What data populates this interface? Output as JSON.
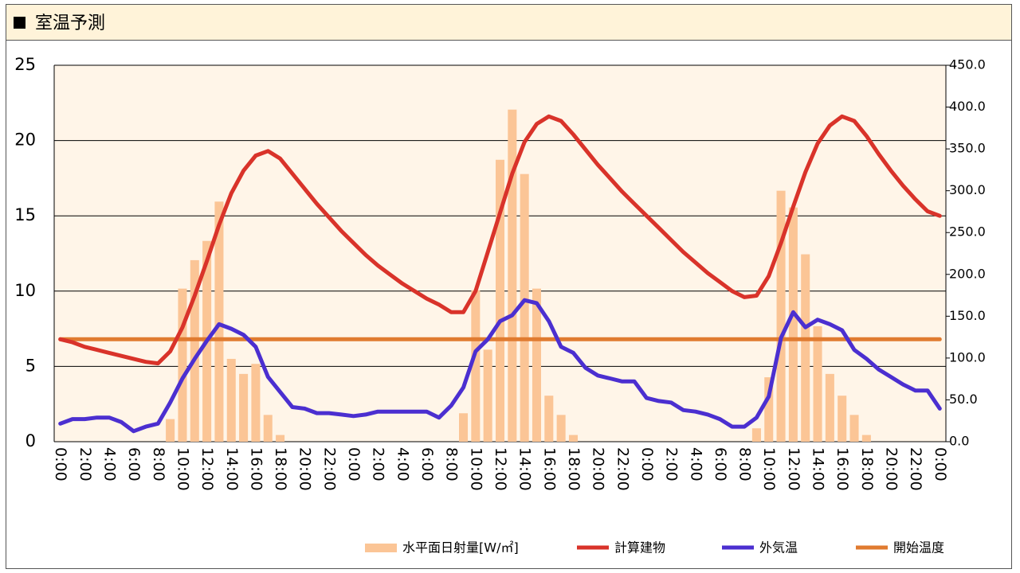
{
  "chart_data": {
    "type": "combo",
    "title": "室温予測",
    "categories": [
      "0:00",
      null,
      "2:00",
      null,
      "4:00",
      null,
      "6:00",
      null,
      "8:00",
      null,
      "10:00",
      null,
      "12:00",
      null,
      "14:00",
      null,
      "16:00",
      null,
      "18:00",
      null,
      "20:00",
      null,
      "22:00",
      null,
      "0:00",
      null,
      "2:00",
      null,
      "4:00",
      null,
      "6:00",
      null,
      "8:00",
      null,
      "10:00",
      null,
      "12:00",
      null,
      "14:00",
      null,
      "16:00",
      null,
      "18:00",
      null,
      "20:00",
      null,
      "22:00",
      null,
      "0:00",
      null,
      "2:00",
      null,
      "4:00",
      null,
      "6:00",
      null,
      "8:00",
      null,
      "10:00",
      null,
      "12:00",
      null,
      "14:00",
      null,
      "16:00",
      null,
      "18:00",
      null,
      "20:00",
      null,
      "22:00",
      null,
      "0:00"
    ],
    "ylim": [
      0,
      25
    ],
    "yticks": [
      0,
      5,
      10,
      15,
      20,
      25
    ],
    "y2lim": [
      0,
      450
    ],
    "y2ticks": [
      {
        "value": 0,
        "label": "0.0"
      },
      {
        "value": 50,
        "label": "50.0"
      },
      {
        "value": 100,
        "label": "100.0"
      },
      {
        "value": 150,
        "label": "150.0"
      },
      {
        "value": 200,
        "label": "200.0"
      },
      {
        "value": 250,
        "label": "250.0"
      },
      {
        "value": 300,
        "label": "300.0"
      },
      {
        "value": 350,
        "label": "350.0"
      },
      {
        "value": 400,
        "label": "400.0"
      },
      {
        "value": 450,
        "label": "450.0"
      }
    ],
    "grid": true,
    "series": [
      {
        "name": "水平面日射量[W/㎡]",
        "type": "bar",
        "axis": "y2",
        "color": "#fbc596",
        "values": [
          0,
          0,
          0,
          0,
          0,
          0,
          0,
          0,
          0,
          27,
          183,
          217,
          240,
          287,
          99,
          81,
          93,
          32,
          8,
          0,
          0,
          0,
          0,
          0,
          0,
          0,
          0,
          0,
          0,
          0,
          0,
          0,
          0,
          34,
          181,
          110,
          337,
          397,
          320,
          183,
          55,
          32,
          8,
          0,
          0,
          0,
          0,
          0,
          0,
          0,
          0,
          0,
          0,
          0,
          0,
          0,
          0,
          16,
          77,
          300,
          280,
          224,
          138,
          81,
          55,
          32,
          8,
          0,
          0,
          0,
          0,
          0,
          0
        ]
      },
      {
        "name": "計算建物",
        "type": "line",
        "color": "#d9332a",
        "values": [
          6.8,
          6.6,
          6.3,
          6.1,
          5.9,
          5.7,
          5.5,
          5.3,
          5.2,
          6.0,
          7.6,
          9.7,
          12.0,
          14.4,
          16.5,
          18.0,
          19.0,
          19.3,
          18.8,
          17.8,
          16.8,
          15.8,
          14.9,
          14.0,
          13.2,
          12.4,
          11.7,
          11.1,
          10.5,
          10.0,
          9.5,
          9.1,
          8.6,
          8.6,
          10.0,
          12.6,
          15.2,
          17.8,
          19.9,
          21.1,
          21.6,
          21.3,
          20.4,
          19.4,
          18.4,
          17.5,
          16.6,
          15.8,
          15.0,
          14.2,
          13.4,
          12.6,
          11.9,
          11.2,
          10.6,
          10.0,
          9.6,
          9.7,
          11.0,
          13.2,
          15.6,
          17.9,
          19.8,
          21.0,
          21.6,
          21.3,
          20.3,
          19.1,
          18.0,
          17.0,
          16.1,
          15.3,
          15.0
        ]
      },
      {
        "name": "外気温",
        "type": "line",
        "color": "#4b2fd0",
        "values": [
          1.2,
          1.5,
          1.5,
          1.6,
          1.6,
          1.3,
          0.7,
          1.0,
          1.2,
          2.6,
          4.2,
          5.5,
          6.7,
          7.8,
          7.5,
          7.1,
          6.3,
          4.3,
          3.3,
          2.3,
          2.2,
          1.9,
          1.9,
          1.8,
          1.7,
          1.8,
          2.0,
          2.0,
          2.0,
          2.0,
          2.0,
          1.6,
          2.4,
          3.6,
          6.0,
          6.8,
          8.0,
          8.4,
          9.4,
          9.2,
          8.0,
          6.3,
          5.9,
          4.9,
          4.4,
          4.2,
          4.0,
          4.0,
          2.9,
          2.7,
          2.6,
          2.1,
          2.0,
          1.8,
          1.5,
          1.0,
          1.0,
          1.6,
          3.0,
          6.9,
          8.6,
          7.6,
          8.1,
          7.8,
          7.4,
          6.1,
          5.5,
          4.8,
          4.3,
          3.8,
          3.4,
          3.4,
          2.2
        ]
      },
      {
        "name": "開始温度",
        "type": "line",
        "color": "#e07b30",
        "values": [
          6.8,
          6.8,
          6.8,
          6.8,
          6.8,
          6.8,
          6.8,
          6.8,
          6.8,
          6.8,
          6.8,
          6.8,
          6.8,
          6.8,
          6.8,
          6.8,
          6.8,
          6.8,
          6.8,
          6.8,
          6.8,
          6.8,
          6.8,
          6.8,
          6.8,
          6.8,
          6.8,
          6.8,
          6.8,
          6.8,
          6.8,
          6.8,
          6.8,
          6.8,
          6.8,
          6.8,
          6.8,
          6.8,
          6.8,
          6.8,
          6.8,
          6.8,
          6.8,
          6.8,
          6.8,
          6.8,
          6.8,
          6.8,
          6.8,
          6.8,
          6.8,
          6.8,
          6.8,
          6.8,
          6.8,
          6.8,
          6.8,
          6.8,
          6.8,
          6.8,
          6.8,
          6.8,
          6.8,
          6.8,
          6.8,
          6.8,
          6.8,
          6.8,
          6.8,
          6.8,
          6.8,
          6.8,
          6.8
        ]
      }
    ]
  }
}
